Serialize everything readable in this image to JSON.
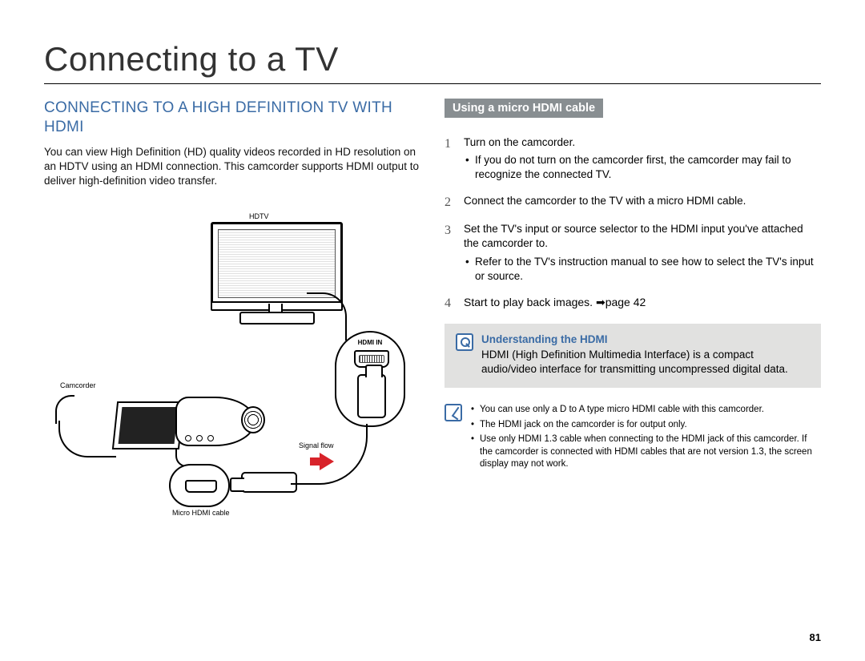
{
  "page": {
    "title": "Connecting to a TV",
    "number": "81"
  },
  "left": {
    "heading": "CONNECTING TO A HIGH DEFINITION TV WITH HDMI",
    "intro": "You can view High Definition (HD) quality videos recorded in HD resolution on an HDTV using an HDMI connection. This camcorder supports HDMI output to deliver high-definition video transfer.",
    "diagram": {
      "hdtv_label": "HDTV",
      "hdmi_in_label": "HDMI IN",
      "camcorder_label": "Camcorder",
      "signal_flow_label": "Signal flow",
      "micro_hdmi_label": "Micro HDMI cable",
      "arrow_color": "#d8232a"
    }
  },
  "right": {
    "sub_heading": "Using a micro HDMI cable",
    "steps": [
      {
        "num": "1",
        "text": "Turn on the camcorder.",
        "bullets": [
          "If you do not turn on the camcorder first, the camcorder may fail to recognize the connected TV."
        ]
      },
      {
        "num": "2",
        "text": "Connect the camcorder to the TV with a micro HDMI cable.",
        "bullets": []
      },
      {
        "num": "3",
        "text": "Set the TV's input or source selector to the HDMI input you've attached the camcorder to.",
        "bullets": [
          "Refer to the TV's instruction manual to see how to select the TV's input or source."
        ]
      },
      {
        "num": "4",
        "text": "Start to play back images. ➡page 42",
        "bullets": []
      }
    ],
    "info_box": {
      "title": "Understanding the HDMI",
      "body": "HDMI (High Definition Multimedia Interface) is a compact audio/video interface for transmitting uncompressed digital data."
    },
    "notes": [
      "You can use only a D to A type micro HDMI cable with this camcorder.",
      "The HDMI jack on the camcorder is for output only.",
      "Use only HDMI 1.3 cable when connecting to the HDMI jack of this camcorder. If the camcorder is connected with HDMI cables that are not version 1.3, the screen display may not work."
    ]
  },
  "colors": {
    "heading_blue": "#3a6ba5",
    "subhead_bg": "#888e91",
    "info_bg": "#e1e1e0"
  }
}
